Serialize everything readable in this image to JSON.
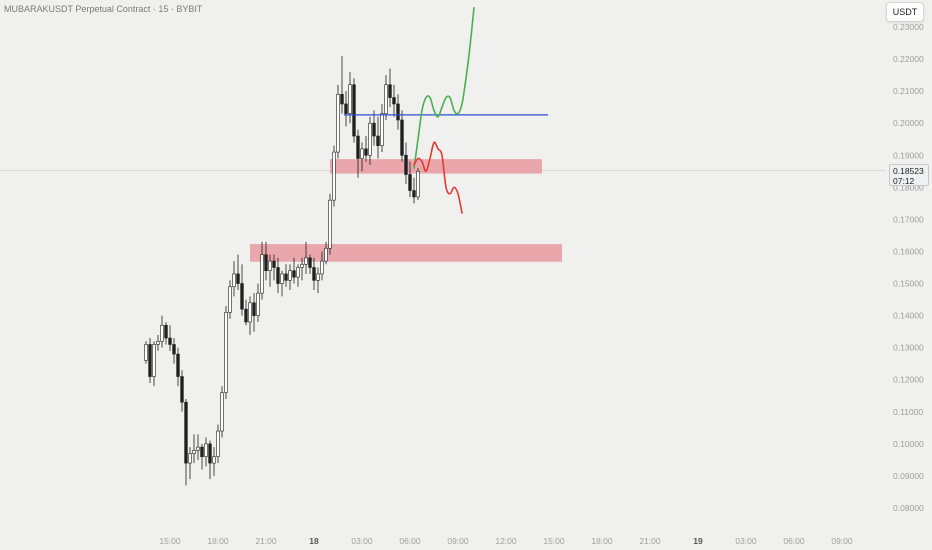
{
  "title": "MUBARAKUSDT Perpetual Contract · 15 · BYBIT",
  "currency": "USDT",
  "last_price": "0.18523",
  "countdown": "07:12",
  "colors": {
    "background": "#f0f0ee",
    "candle": "#1f1f1f",
    "zone_fill": "#e79aa0",
    "blue_line": "#2a4fd6",
    "green_path": "#4caf50",
    "red_path": "#e53935",
    "axis_text": "#9e9e9e"
  },
  "chart_data": {
    "type": "candlestick",
    "title": "MUBARAKUSDT Perpetual Contract · 15 · BYBIT",
    "ylim": [
      0.073,
      0.237
    ],
    "y_ticks": [
      "0.23000",
      "0.22000",
      "0.21000",
      "0.20000",
      "0.19000",
      "0.18000",
      "0.17000",
      "0.16000",
      "0.15000",
      "0.14000",
      "0.13000",
      "0.12000",
      "0.11000",
      "0.10000",
      "0.09000",
      "0.08000"
    ],
    "y_tick_values": [
      0.23,
      0.22,
      0.21,
      0.2,
      0.19,
      0.18,
      0.17,
      0.16,
      0.15,
      0.14,
      0.13,
      0.12,
      0.11,
      0.1,
      0.09,
      0.08
    ],
    "x_ticks": [
      "15:00",
      "18:00",
      "21:00",
      "18",
      "03:00",
      "06:00",
      "09:00",
      "12:00",
      "15:00",
      "18:00",
      "21:00",
      "19",
      "03:00",
      "06:00",
      "09:00"
    ],
    "x_tick_index": [
      0,
      12,
      24,
      36,
      48,
      60,
      72,
      84,
      96,
      108,
      120,
      132,
      144,
      156,
      168
    ],
    "x_tick_bold": [
      false,
      false,
      false,
      true,
      false,
      false,
      false,
      false,
      false,
      false,
      false,
      true,
      false,
      false,
      false
    ],
    "first_tick_offset": 6,
    "candles": [
      [
        0.126,
        0.132,
        0.125,
        0.131
      ],
      [
        0.131,
        0.133,
        0.119,
        0.121
      ],
      [
        0.121,
        0.132,
        0.118,
        0.131
      ],
      [
        0.131,
        0.134,
        0.129,
        0.132
      ],
      [
        0.132,
        0.14,
        0.13,
        0.137
      ],
      [
        0.137,
        0.138,
        0.131,
        0.133
      ],
      [
        0.133,
        0.137,
        0.129,
        0.131
      ],
      [
        0.131,
        0.133,
        0.125,
        0.128
      ],
      [
        0.128,
        0.13,
        0.118,
        0.121
      ],
      [
        0.121,
        0.123,
        0.11,
        0.113
      ],
      [
        0.113,
        0.114,
        0.087,
        0.094
      ],
      [
        0.094,
        0.099,
        0.089,
        0.097
      ],
      [
        0.097,
        0.103,
        0.094,
        0.098
      ],
      [
        0.098,
        0.103,
        0.095,
        0.099
      ],
      [
        0.099,
        0.1,
        0.092,
        0.096
      ],
      [
        0.096,
        0.102,
        0.093,
        0.1
      ],
      [
        0.1,
        0.101,
        0.089,
        0.094
      ],
      [
        0.094,
        0.099,
        0.09,
        0.096
      ],
      [
        0.096,
        0.106,
        0.094,
        0.104
      ],
      [
        0.104,
        0.118,
        0.102,
        0.116
      ],
      [
        0.116,
        0.143,
        0.114,
        0.141
      ],
      [
        0.141,
        0.151,
        0.139,
        0.149
      ],
      [
        0.149,
        0.157,
        0.146,
        0.153
      ],
      [
        0.153,
        0.159,
        0.148,
        0.15
      ],
      [
        0.15,
        0.156,
        0.14,
        0.142
      ],
      [
        0.142,
        0.145,
        0.137,
        0.138
      ],
      [
        0.138,
        0.146,
        0.134,
        0.144
      ],
      [
        0.144,
        0.147,
        0.135,
        0.14
      ],
      [
        0.14,
        0.15,
        0.138,
        0.147
      ],
      [
        0.147,
        0.163,
        0.145,
        0.159
      ],
      [
        0.159,
        0.163,
        0.151,
        0.154
      ],
      [
        0.154,
        0.159,
        0.149,
        0.157
      ],
      [
        0.157,
        0.159,
        0.151,
        0.155
      ],
      [
        0.155,
        0.158,
        0.147,
        0.15
      ],
      [
        0.15,
        0.154,
        0.146,
        0.153
      ],
      [
        0.153,
        0.156,
        0.149,
        0.151
      ],
      [
        0.151,
        0.156,
        0.148,
        0.154
      ],
      [
        0.154,
        0.158,
        0.15,
        0.152
      ],
      [
        0.152,
        0.156,
        0.149,
        0.155
      ],
      [
        0.155,
        0.158,
        0.151,
        0.156
      ],
      [
        0.156,
        0.163,
        0.153,
        0.158
      ],
      [
        0.158,
        0.159,
        0.153,
        0.155
      ],
      [
        0.155,
        0.158,
        0.148,
        0.151
      ],
      [
        0.151,
        0.155,
        0.147,
        0.153
      ],
      [
        0.153,
        0.16,
        0.151,
        0.157
      ],
      [
        0.157,
        0.163,
        0.156,
        0.161
      ],
      [
        0.161,
        0.178,
        0.159,
        0.176
      ],
      [
        0.176,
        0.193,
        0.174,
        0.191
      ],
      [
        0.191,
        0.212,
        0.189,
        0.209
      ],
      [
        0.209,
        0.221,
        0.203,
        0.206
      ],
      [
        0.206,
        0.21,
        0.199,
        0.203
      ],
      [
        0.203,
        0.216,
        0.2,
        0.212
      ],
      [
        0.212,
        0.214,
        0.194,
        0.196
      ],
      [
        0.196,
        0.198,
        0.183,
        0.189
      ],
      [
        0.189,
        0.194,
        0.185,
        0.192
      ],
      [
        0.192,
        0.196,
        0.188,
        0.19
      ],
      [
        0.19,
        0.202,
        0.187,
        0.2
      ],
      [
        0.2,
        0.204,
        0.193,
        0.196
      ],
      [
        0.196,
        0.202,
        0.189,
        0.193
      ],
      [
        0.193,
        0.206,
        0.191,
        0.203
      ],
      [
        0.203,
        0.215,
        0.201,
        0.212
      ],
      [
        0.212,
        0.217,
        0.205,
        0.208
      ],
      [
        0.208,
        0.212,
        0.202,
        0.206
      ],
      [
        0.206,
        0.209,
        0.198,
        0.201
      ],
      [
        0.201,
        0.204,
        0.188,
        0.19
      ],
      [
        0.19,
        0.194,
        0.181,
        0.184
      ],
      [
        0.184,
        0.188,
        0.177,
        0.179
      ],
      [
        0.179,
        0.183,
        0.175,
        0.177
      ],
      [
        0.177,
        0.186,
        0.176,
        0.185
      ]
    ],
    "zones": [
      {
        "top": 0.1888,
        "bottom": 0.1843,
        "from": 46,
        "to": 99
      },
      {
        "top": 0.1623,
        "bottom": 0.1568,
        "from": 26,
        "to": 104
      }
    ],
    "horizontal_line": {
      "price": 0.2026,
      "from": 50,
      "to": 100
    },
    "green_path": [
      [
        67,
        0.186
      ],
      [
        68,
        0.195
      ],
      [
        69,
        0.204
      ],
      [
        70,
        0.208
      ],
      [
        71,
        0.208
      ],
      [
        72,
        0.204
      ],
      [
        73,
        0.202
      ],
      [
        74,
        0.205
      ],
      [
        75,
        0.208
      ],
      [
        76,
        0.208
      ],
      [
        77,
        0.204
      ],
      [
        78,
        0.203
      ],
      [
        79,
        0.206
      ],
      [
        80,
        0.214
      ],
      [
        81,
        0.224
      ],
      [
        82,
        0.236
      ]
    ],
    "red_path": [
      [
        67,
        0.187
      ],
      [
        68,
        0.189
      ],
      [
        69,
        0.188
      ],
      [
        70,
        0.185
      ],
      [
        71,
        0.189
      ],
      [
        72,
        0.194
      ],
      [
        73,
        0.192
      ],
      [
        74,
        0.19
      ],
      [
        75,
        0.18
      ],
      [
        76,
        0.178
      ],
      [
        77,
        0.18
      ],
      [
        78,
        0.178
      ],
      [
        79,
        0.172
      ]
    ]
  }
}
